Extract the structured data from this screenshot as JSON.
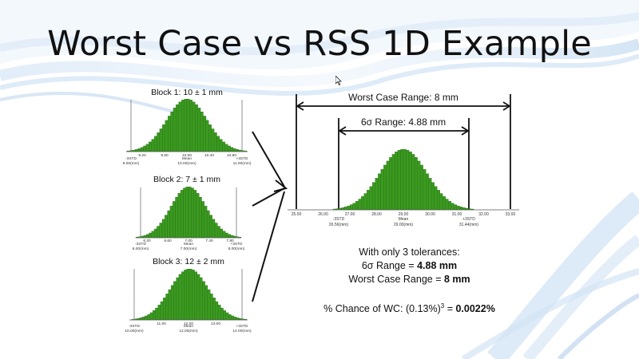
{
  "slide": {
    "title": "Worst Case vs RSS 1D Example"
  },
  "blocks": [
    {
      "label": "Block 1: 10 ± 1 mm",
      "ticks": [
        "9.20",
        "9.60",
        "10.00",
        "10.40",
        "10.80"
      ],
      "mean_label": "Mean",
      "mean_value": "10.00(mm)",
      "left_label": "-3STD",
      "left_value": "9.00(mm)",
      "right_label": "+3STD",
      "right_value": "11.00(mm)"
    },
    {
      "label": "Block 2: 7 ± 1 mm",
      "ticks": [
        "6.20",
        "6.60",
        "7.00",
        "7.40",
        "7.80"
      ],
      "mean_label": "Mean",
      "mean_value": "7.00(mm)",
      "left_label": "-3STD",
      "left_value": "6.00(mm)",
      "right_label": "+3STD",
      "right_value": "8.00(mm)"
    },
    {
      "label": "Block 3: 12 ± 2 mm",
      "ticks": [
        "11.00",
        "12.00",
        "13.00"
      ],
      "mean_label": "Mean",
      "mean_value": "12.00(mm)",
      "left_label": "-3STD",
      "left_value": "10.00(mm)",
      "right_label": "+3STD",
      "right_value": "14.00(mm)"
    }
  ],
  "result": {
    "worst_case_label": "Worst Case Range: 8 mm",
    "six_sigma_label": "6σ Range: 4.88 mm",
    "ticks": [
      "25.00",
      "26.00",
      "27.00",
      "28.00",
      "29.00",
      "30.00",
      "31.00",
      "32.00",
      "33.00"
    ],
    "mean_label": "Mean",
    "mean_value": "29.00(mm)",
    "left_label": "-3STD",
    "left_value": "26.56(mm)",
    "right_label": "+3STD",
    "right_value": "31.44(mm)"
  },
  "summary": {
    "line1": "With only 3 tolerances:",
    "line2_prefix": "6σ Range = ",
    "line2_value": "4.88 mm",
    "line3_prefix": "Worst Case Range = ",
    "line3_value": "8 mm",
    "line4_prefix": "% Chance of WC: (0.13%)",
    "line4_exp": "3",
    "line4_mid": " = ",
    "line4_value": "0.0022%"
  },
  "colors": {
    "bar_fill": "#3a9a1f",
    "bar_stroke": "#1f5e10",
    "background_swoosh": "#b8d4ee"
  }
}
